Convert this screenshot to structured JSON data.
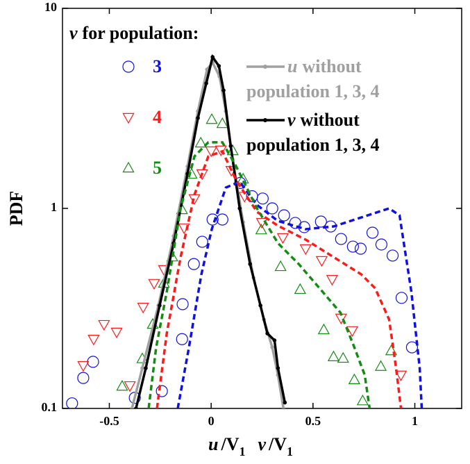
{
  "chart_data": {
    "type": "scatter",
    "ylabel": "PDF",
    "xlabel": [
      "u",
      "/V",
      "1",
      "v",
      "/V",
      "1"
    ],
    "xlim": [
      -0.73,
      1.23
    ],
    "ylim": [
      0.1,
      10
    ],
    "log_y": true,
    "xticks": [
      -0.5,
      0,
      0.5,
      1
    ],
    "yticks": [
      0.1,
      1,
      10
    ],
    "legend_title": [
      "v",
      "for population:"
    ],
    "series": [
      {
        "name": [
          "3"
        ],
        "color": "#1010e0",
        "marker": "circle",
        "x": [
          -0.683,
          -0.628,
          -0.58,
          -0.375,
          -0.242,
          -0.143,
          -0.14,
          -0.085,
          -0.044,
          0.007,
          0.055,
          0.143,
          0.201,
          0.253,
          0.3,
          0.358,
          0.413,
          0.457,
          0.539,
          0.587,
          0.638,
          0.696,
          0.734,
          0.792,
          0.836,
          0.891,
          0.935,
          0.986
        ],
        "values": [
          0.106,
          0.142,
          0.171,
          0.113,
          0.122,
          0.222,
          0.332,
          0.527,
          0.681,
          0.88,
          0.88,
          1.34,
          1.15,
          1.12,
          1.0,
          0.923,
          0.846,
          0.806,
          0.859,
          0.812,
          0.703,
          0.644,
          0.629,
          0.756,
          0.66,
          0.581,
          0.357,
          0.202
        ]
      },
      {
        "name": [
          "4"
        ],
        "color": "#ff1a1a",
        "marker": "triangle-down",
        "x": [
          -0.628,
          -0.577,
          -0.526,
          -0.464,
          -0.399,
          -0.334,
          -0.28,
          -0.232,
          -0.133,
          -0.082,
          -0.044,
          0,
          0.048,
          0.099,
          0.164,
          0.249,
          0.352,
          0.464,
          0.543,
          0.594,
          0.638,
          0.693,
          0.932
        ],
        "values": [
          0.164,
          0.222,
          0.263,
          0.241,
          0.13,
          0.321,
          0.422,
          0.495,
          0.8,
          1.12,
          1.49,
          1.94,
          1.96,
          1.55,
          1.15,
          0.852,
          0.715,
          0.629,
          0.549,
          0.442,
          0.283,
          0.245,
          0.147
        ]
      },
      {
        "name": [
          "5"
        ],
        "color": "#148c14",
        "marker": "triangle-up",
        "x": [
          -0.437,
          -0.338,
          -0.287,
          -0.232,
          -0.191,
          -0.143,
          -0.096,
          -0.051,
          0.003,
          0.055,
          0.106,
          0.157,
          0.246,
          0.341,
          0.437,
          0.553,
          0.601,
          0.648,
          0.703,
          0.744,
          0.833,
          0.884
        ],
        "values": [
          0.129,
          0.177,
          0.263,
          0.422,
          0.571,
          0.984,
          1.48,
          2.12,
          2.78,
          2.65,
          1.94,
          1.4,
          0.78,
          0.511,
          0.393,
          0.247,
          0.181,
          0.178,
          0.139,
          0.109,
          0.162,
          0.194
        ]
      },
      {
        "name": [
          "u",
          "without",
          "population 1, 3, 4"
        ],
        "color": "#a0a0a0",
        "marker": "line-dots",
        "x": [
          -0.389,
          -0.338,
          -0.259,
          -0.184,
          -0.116,
          -0.065,
          -0.02,
          0.007,
          0.041,
          0.072,
          0.106,
          0.157,
          0.208,
          0.259,
          0.3,
          0.328,
          0.355
        ],
        "values": [
          0.1,
          0.159,
          0.327,
          0.727,
          1.62,
          3.06,
          4.95,
          5.36,
          4.57,
          3.06,
          1.75,
          0.852,
          0.45,
          0.278,
          0.202,
          0.147,
          0.1
        ]
      },
      {
        "name": [
          "v",
          "without",
          "population 1, 3, 4"
        ],
        "color": "#000000",
        "marker": "line-dots",
        "x": [
          -0.369,
          -0.321,
          -0.253,
          -0.184,
          -0.116,
          -0.065,
          -0.024,
          0.007,
          0.038,
          0.061,
          0.096,
          0.14,
          0.191,
          0.242,
          0.276,
          0.311,
          0.328,
          0.362
        ],
        "values": [
          0.1,
          0.159,
          0.327,
          0.67,
          1.49,
          2.83,
          4.22,
          5.71,
          5.15,
          3.89,
          2.05,
          1.0,
          0.527,
          0.327,
          0.237,
          0.219,
          0.159,
          0.107
        ]
      },
      {
        "color": "#1010e0",
        "marker": "dashed",
        "x": [
          -0.164,
          -0.109,
          -0.048,
          0.003,
          0.072,
          0.14,
          0.225,
          0.328,
          0.464,
          0.601,
          0.737,
          0.874,
          0.925,
          0.983,
          1.024,
          1.034
        ],
        "values": [
          0.1,
          0.202,
          0.468,
          0.787,
          1.27,
          1.36,
          1.04,
          0.865,
          0.787,
          0.812,
          0.901,
          1.0,
          0.923,
          0.383,
          0.159,
          0.1
        ]
      },
      {
        "color": "#ff1a1a",
        "marker": "dashed",
        "x": [
          -0.266,
          -0.218,
          -0.15,
          -0.082,
          -0.014,
          0.055,
          0.123,
          0.225,
          0.328,
          0.464,
          0.601,
          0.737,
          0.805,
          0.874,
          0.908,
          0.932
        ],
        "values": [
          0.1,
          0.237,
          0.571,
          1.17,
          1.82,
          1.93,
          1.38,
          0.961,
          0.819,
          0.698,
          0.571,
          0.468,
          0.399,
          0.278,
          0.159,
          0.1
        ]
      },
      {
        "color": "#148c14",
        "marker": "dashed",
        "x": [
          -0.307,
          -0.27,
          -0.218,
          -0.15,
          -0.082,
          -0.014,
          0.055,
          0.123,
          0.225,
          0.328,
          0.43,
          0.532,
          0.635,
          0.703,
          0.754,
          0.778
        ],
        "values": [
          0.1,
          0.202,
          0.383,
          1.0,
          1.82,
          2.14,
          2.14,
          1.62,
          1.0,
          0.67,
          0.527,
          0.399,
          0.301,
          0.202,
          0.147,
          0.1
        ]
      }
    ]
  }
}
